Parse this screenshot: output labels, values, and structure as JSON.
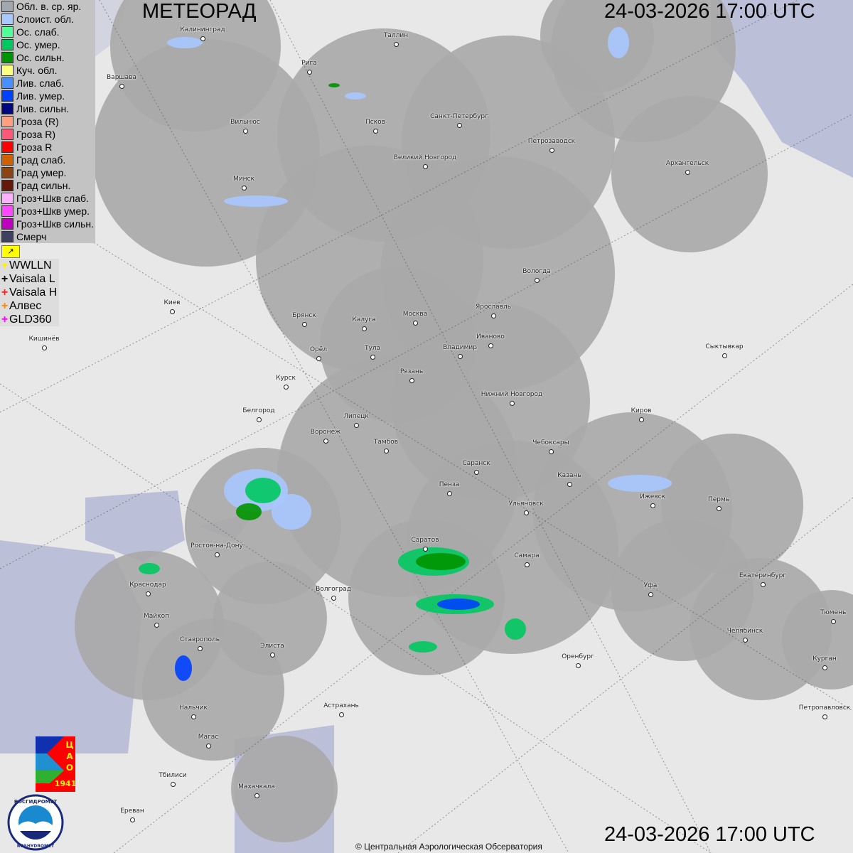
{
  "header": {
    "title": "МЕТЕОРАД",
    "datetime": "24-03-2026  17:00 UTC"
  },
  "footer": {
    "datetime": "24-03-2026  17:00 UTC",
    "copyright": "© Центральная Аэрологическая Обсерватория"
  },
  "legend": {
    "items": [
      {
        "label": "Обл. в. ср. яр.",
        "color": "#a0a8b0"
      },
      {
        "label": "Слоист. обл.",
        "color": "#a8c8ff"
      },
      {
        "label": "Ос. слаб.",
        "color": "#50ff98"
      },
      {
        "label": "Ос. умер.",
        "color": "#00c860"
      },
      {
        "label": "Ос. сильн.",
        "color": "#009400"
      },
      {
        "label": "Куч. обл.",
        "color": "#ffff80"
      },
      {
        "label": "Лив. слаб.",
        "color": "#4890ff"
      },
      {
        "label": "Лив. умер.",
        "color": "#0040ff"
      },
      {
        "label": "Лив. сильн.",
        "color": "#000880"
      },
      {
        "label": "Гроза (R)",
        "color": "#ffa080"
      },
      {
        "label": "Гроза R)",
        "color": "#ff5878"
      },
      {
        "label": "Гроза R",
        "color": "#ff0000"
      },
      {
        "label": "Град слаб.",
        "color": "#d06000"
      },
      {
        "label": "Град умер.",
        "color": "#8c4410"
      },
      {
        "label": "Град сильн.",
        "color": "#641808"
      },
      {
        "label": "Гроз+Шкв слаб.",
        "color": "#ffb0ff"
      },
      {
        "label": "Гроз+Шкв умер.",
        "color": "#ff48ff"
      },
      {
        "label": "Гроз+Шкв сильн.",
        "color": "#c000c0"
      },
      {
        "label": "Смерч",
        "color": "#404060"
      }
    ],
    "lightning": [
      {
        "label": "WWLLN",
        "color": "#ffee00"
      },
      {
        "label": "Vaisala L",
        "color": "#000000"
      },
      {
        "label": "Vaisala H",
        "color": "#ff2020"
      },
      {
        "label": "Алвес",
        "color": "#ff8800"
      },
      {
        "label": "GLD360",
        "color": "#ff00ff"
      }
    ],
    "flag_icon": "flag-icon"
  },
  "logos": {
    "cao": "ЦАО 1941",
    "roshydromet_ru": "РОСГИДРОМЕТ",
    "roshydromet_en": "ROSHYDROMET"
  },
  "cities": [
    "Калининград",
    "Таллин",
    "Рига",
    "Варшава",
    "Санкт-Петербург",
    "Псков",
    "Вильнюс",
    "Великий Новгород",
    "Петрозаводск",
    "Архангельск",
    "Минск",
    "Вологда",
    "Киев",
    "Брянск",
    "Калуга",
    "Москва",
    "Ярославль",
    "Иваново",
    "Кишинёв",
    "Орёл",
    "Тула",
    "Владимир",
    "Сыктывкар",
    "Рязань",
    "Курск",
    "Нижний Новгород",
    "Белгород",
    "Киров",
    "Липецк",
    "Воронеж",
    "Тамбов",
    "Чебоксары",
    "Саранск",
    "Казань",
    "Пенза",
    "Ижевск",
    "Пермь",
    "Ульяновск",
    "Ростов-на-Дону",
    "Саратов",
    "Самара",
    "Екатеринбург",
    "Краснодар",
    "Волгоград",
    "Уфа",
    "Тюмень",
    "Майкоп",
    "Челябинск",
    "Ставрополь",
    "Элиста",
    "Оренбург",
    "Курган",
    "Нальчик",
    "Астрахань",
    "Петропавловск",
    "Магас",
    "Тбилиси",
    "Махачкала",
    "Ереван"
  ]
}
